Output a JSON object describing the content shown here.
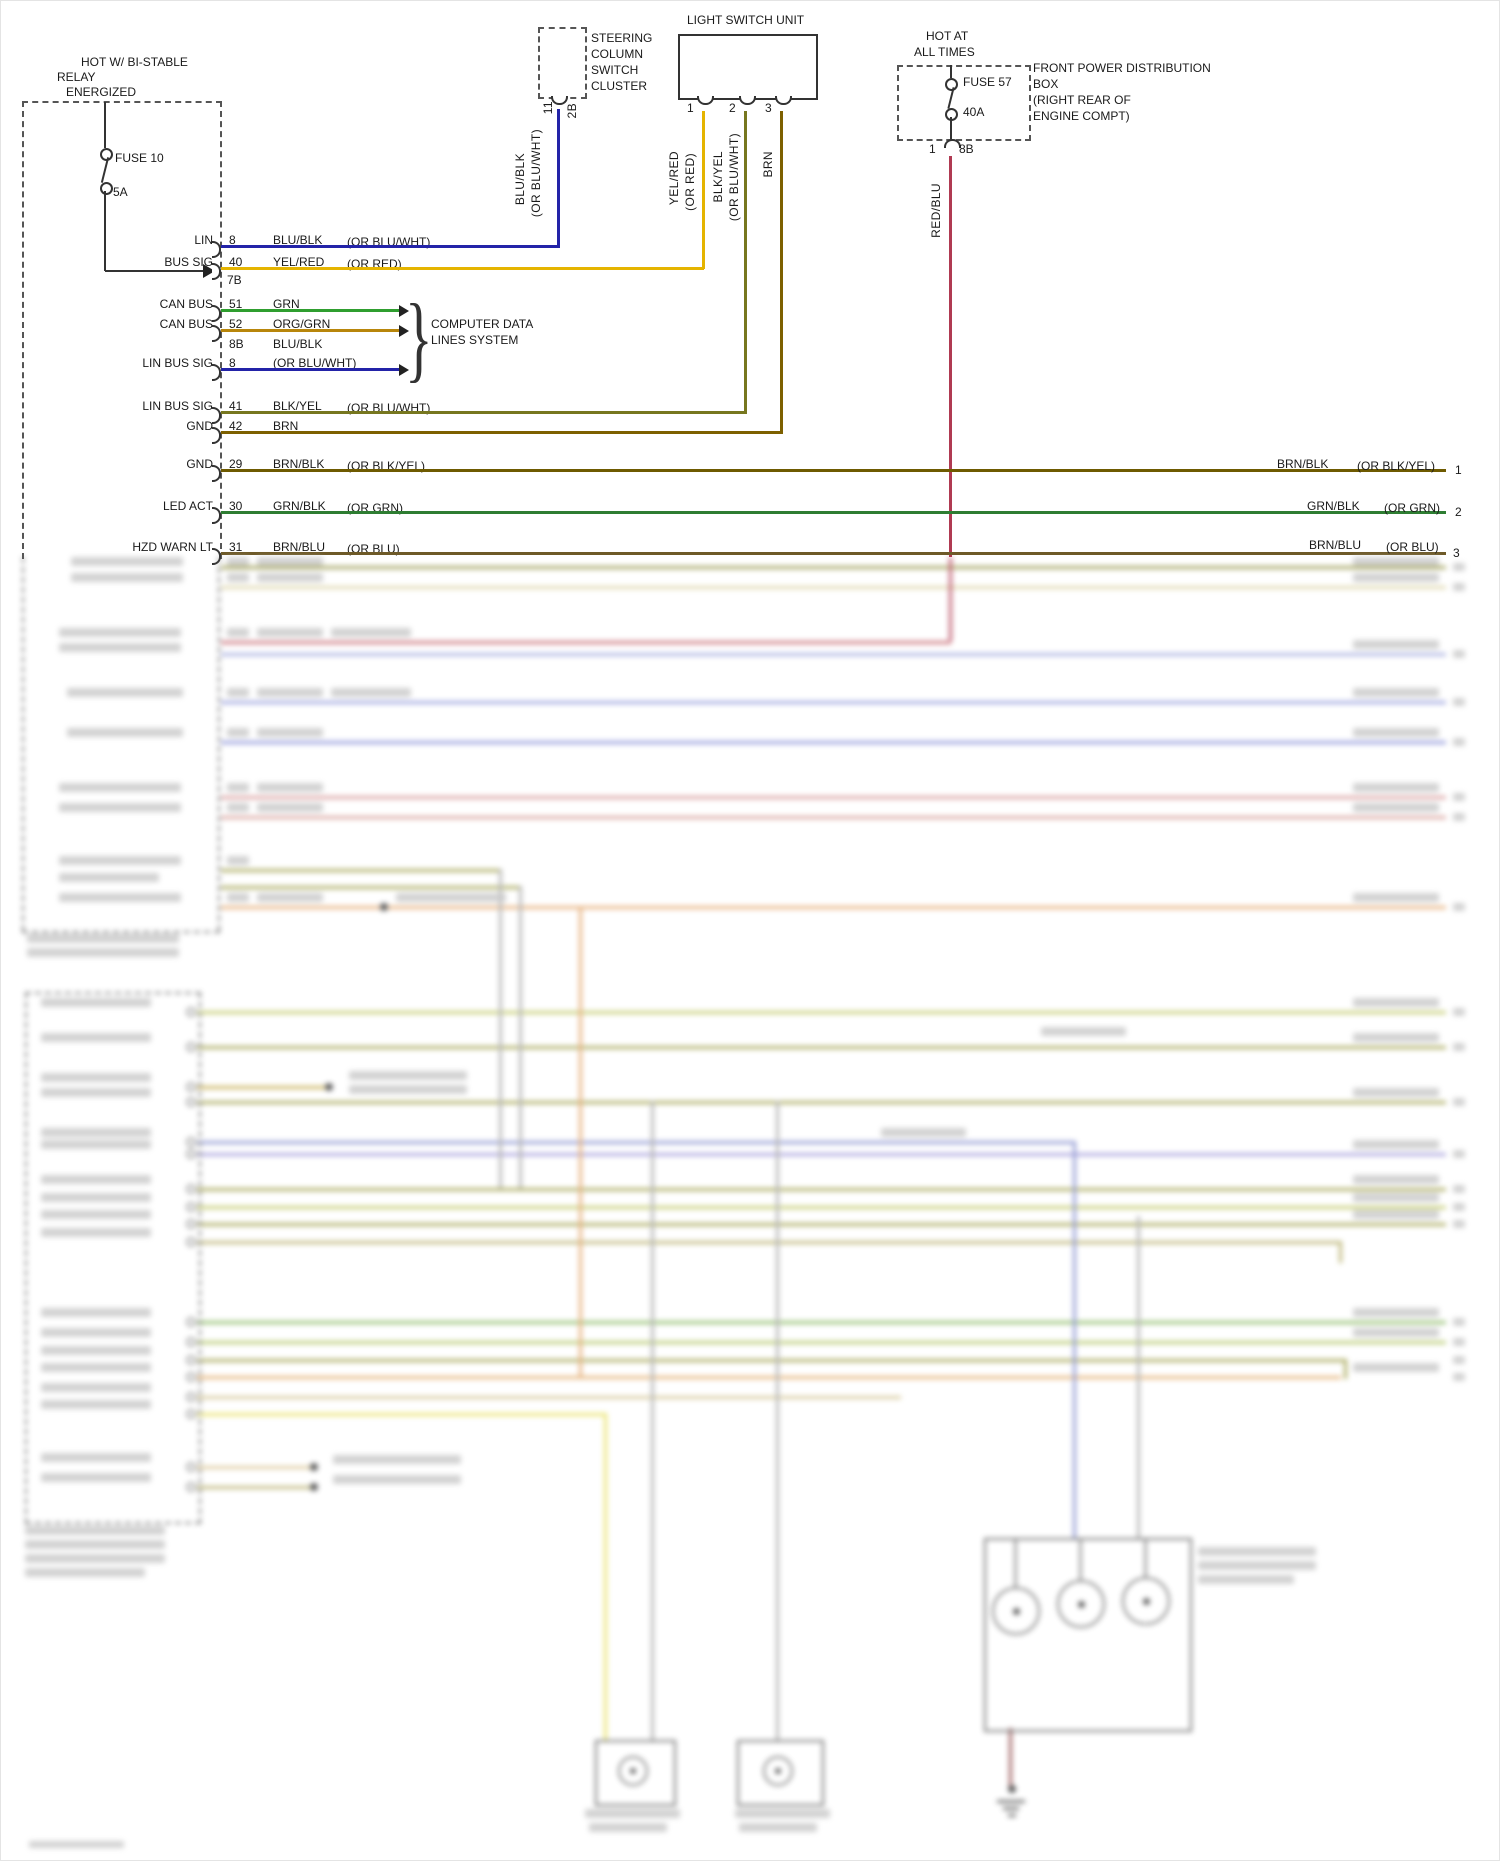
{
  "colors": {
    "blu_blk": "#2323a8",
    "yel_red": "#e5b400",
    "grn": "#2f9e2f",
    "org_grn": "#b8860b",
    "blk_yel": "#77771f",
    "brn": "#7d6000",
    "brn_blk": "#6e5a00",
    "grn_blk": "#2e7d32",
    "brn_blu": "#6e5a28",
    "red_blu": "#b03a52"
  },
  "relay_module": {
    "header_line1": "HOT W/ BI-STABLE",
    "header_line2": "RELAY",
    "header_line3": "ENERGIZED",
    "fuse_label": "FUSE 10",
    "fuse_rating": "5A",
    "connector": "7B"
  },
  "steering_cluster": {
    "label_line1": "STEERING",
    "label_line2": "COLUMN",
    "label_line3": "SWITCH",
    "label_line4": "CLUSTER",
    "pin": "11",
    "connector": "2B",
    "wire": "BLU/BLK",
    "wire_alt": "(OR BLU/WHT)"
  },
  "light_switch": {
    "title": "LIGHT SWITCH UNIT",
    "pin1": "1",
    "pin2": "2",
    "pin3": "3",
    "wire1": "YEL/RED",
    "wire1_alt": "(OR RED)",
    "wire2": "BLK/YEL",
    "wire2_alt": "(OR BLU/WHT)",
    "wire3": "BRN"
  },
  "power_box": {
    "header_line1": "HOT AT",
    "header_line2": "ALL TIMES",
    "fuse_label": "FUSE 57",
    "fuse_rating": "40A",
    "desc_line1": "FRONT POWER DISTRIBUTION",
    "desc_line2": "BOX",
    "desc_line3": "(RIGHT REAR OF",
    "desc_line4": "ENGINE COMPT)",
    "pin": "1",
    "connector": "8B",
    "wire": "RED/BLU"
  },
  "computer_data_system": {
    "brace": "}",
    "line1": "COMPUTER DATA",
    "line2": "LINES SYSTEM"
  },
  "pin_rows": [
    {
      "left": "LIN",
      "pin": "8",
      "wire": "BLU/BLK",
      "alt": "(OR BLU/WHT)"
    },
    {
      "left": "BUS SIG",
      "pin": "40",
      "wire": "YEL/RED",
      "alt": "(OR RED)"
    },
    {
      "left": "CAN BUS",
      "pin": "51",
      "wire": "GRN",
      "alt": ""
    },
    {
      "left": "CAN BUS",
      "pin": "52",
      "wire": "ORG/GRN",
      "alt": ""
    },
    {
      "left": "",
      "pin": "8B",
      "wire": "BLU/BLK",
      "alt": ""
    },
    {
      "left": "LIN BUS SIG",
      "pin": "8",
      "wire": "(OR BLU/WHT)",
      "alt": ""
    },
    {
      "left": "LIN BUS SIG",
      "pin": "41",
      "wire": "BLK/YEL",
      "alt": "(OR BLU/WHT)"
    },
    {
      "left": "GND",
      "pin": "42",
      "wire": "BRN",
      "alt": ""
    },
    {
      "left": "GND",
      "pin": "29",
      "wire": "BRN/BLK",
      "alt": "(OR BLK/YEL)",
      "right_wire": "BRN/BLK",
      "right_alt": "(OR BLK/YEL)",
      "right_num": "1"
    },
    {
      "left": "LED ACT",
      "pin": "30",
      "wire": "GRN/BLK",
      "alt": "(OR GRN)",
      "right_wire": "GRN/BLK",
      "right_alt": "(OR GRN)",
      "right_num": "2"
    },
    {
      "left": "HZD WARN LT",
      "pin": "31",
      "wire": "BRN/BLU",
      "alt": "(OR BLU)",
      "right_wire": "BRN/BLU",
      "right_alt": "(OR BLU)",
      "right_num": "3"
    }
  ]
}
